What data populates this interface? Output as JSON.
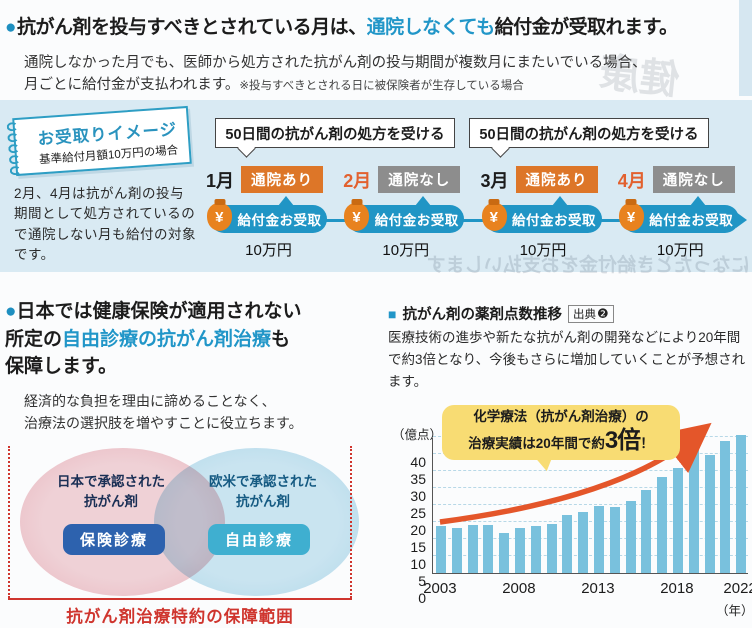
{
  "colors": {
    "accent": "#2095c5",
    "bullet": "#1e8fc0",
    "hl-blue": "#2196c8",
    "orange": "#dd7628",
    "graybadge": "#8d8d8d",
    "month-orange": "#e2612f",
    "band": "#d9eaf3",
    "deepblue": "#2d62ae",
    "cyanbadge": "#3fafd0",
    "red": "#cf352e",
    "bar": "#79c1dd",
    "arrow": "#e4562a",
    "yellow": "#f8dc73"
  },
  "bleed": {
    "band_text": "になったとき給付金をお支払いします",
    "corner_text": "健康"
  },
  "section1": {
    "headline": {
      "bullet": "●",
      "pre": "抗がん剤を投与すべきとされている月は、",
      "highlight": "通院しなくても",
      "post": "給付金が受取れます。"
    },
    "body_line1": "通院しなかった月でも、医師から処方された抗がん剤の投与期間が複数月にまたいでいる場合、",
    "body_line2": "月ごとに給付金が支払われます。",
    "body_note": "※投与すべきとされる日に被保険者が生存している場合",
    "note_box": {
      "title": "お受取りイメージ",
      "subtitle": "基準給付月額10万円の場合",
      "description": "2月、4月は抗がん剤の投与期間として処方されているので通院しない月も給付の対象です。"
    },
    "timeline": {
      "prescription_label": "50日間の抗がん剤の処方を受ける",
      "months": [
        {
          "label": "1月",
          "status": "通院あり",
          "visit": true,
          "payout": "給付金お受取",
          "amount": "10万円"
        },
        {
          "label": "2月",
          "status": "通院なし",
          "visit": false,
          "payout": "給付金お受取",
          "amount": "10万円"
        },
        {
          "label": "3月",
          "status": "通院あり",
          "visit": true,
          "payout": "給付金お受取",
          "amount": "10万円"
        },
        {
          "label": "4月",
          "status": "通院なし",
          "visit": false,
          "payout": "給付金お受取",
          "amount": "10万円"
        }
      ],
      "bag_symbol": "¥"
    }
  },
  "section2": {
    "heading": {
      "bullet": "●",
      "line1": "日本では健康保険が適用されない",
      "line2_pre": "所定の",
      "line2_blue": "自由診療の抗がん剤治療",
      "line2_post": "も",
      "line3": "保障します。"
    },
    "body": "経済的な負担を理由に諦めることなく、\n治療法の選択肢を増やすことに役立ちます。",
    "venn": {
      "left_label": "日本で承認された\n抗がん剤",
      "left_badge": "保険診療",
      "right_label": "欧米で承認された\n抗がん剤",
      "right_badge": "自由診療",
      "caption": "抗がん剤治療特約の保障範囲"
    }
  },
  "chart": {
    "square": "■",
    "title": "抗がん剤の薬剤点数推移",
    "source_label": "出典",
    "source_num": "❷",
    "body": "医療技術の進歩や新たな抗がん剤の開発などにより20年間で約3倍となり、今後もさらに増加していくことが予想されます。",
    "unit_y": "（億点）",
    "unit_x": "（年）",
    "callout": {
      "line1": "化学療法（抗がん剤治療）の",
      "line2_pre": "治療実績は20年間で約",
      "line2_big": "3倍",
      "line2_post": "！"
    }
  },
  "chart_data": {
    "type": "bar",
    "title": "抗がん剤の薬剤点数推移",
    "categories": [
      "2003",
      "2004",
      "2005",
      "2006",
      "2007",
      "2008",
      "2009",
      "2010",
      "2011",
      "2012",
      "2013",
      "2014",
      "2015",
      "2016",
      "2017",
      "2018",
      "2019",
      "2020",
      "2021",
      "2022"
    ],
    "values": [
      13.8,
      13.2,
      14.2,
      14.2,
      11.8,
      13.2,
      13.8,
      14.3,
      17.2,
      18.0,
      19.7,
      19.3,
      21.3,
      24.3,
      28.3,
      30.8,
      36.9,
      34.7,
      38.8,
      40.6
    ],
    "ylabel": "億点",
    "xlabel": "年",
    "ylim": [
      0,
      40
    ],
    "ytick_step": 5,
    "xtick_labels": [
      "2003",
      "2008",
      "2013",
      "2018",
      "2022"
    ],
    "xtick_indices": [
      0,
      5,
      10,
      15,
      19
    ],
    "grid": "dashed-horizontal",
    "annotation": "化学療法（抗がん剤治療）の治療実績は20年間で約3倍！"
  }
}
